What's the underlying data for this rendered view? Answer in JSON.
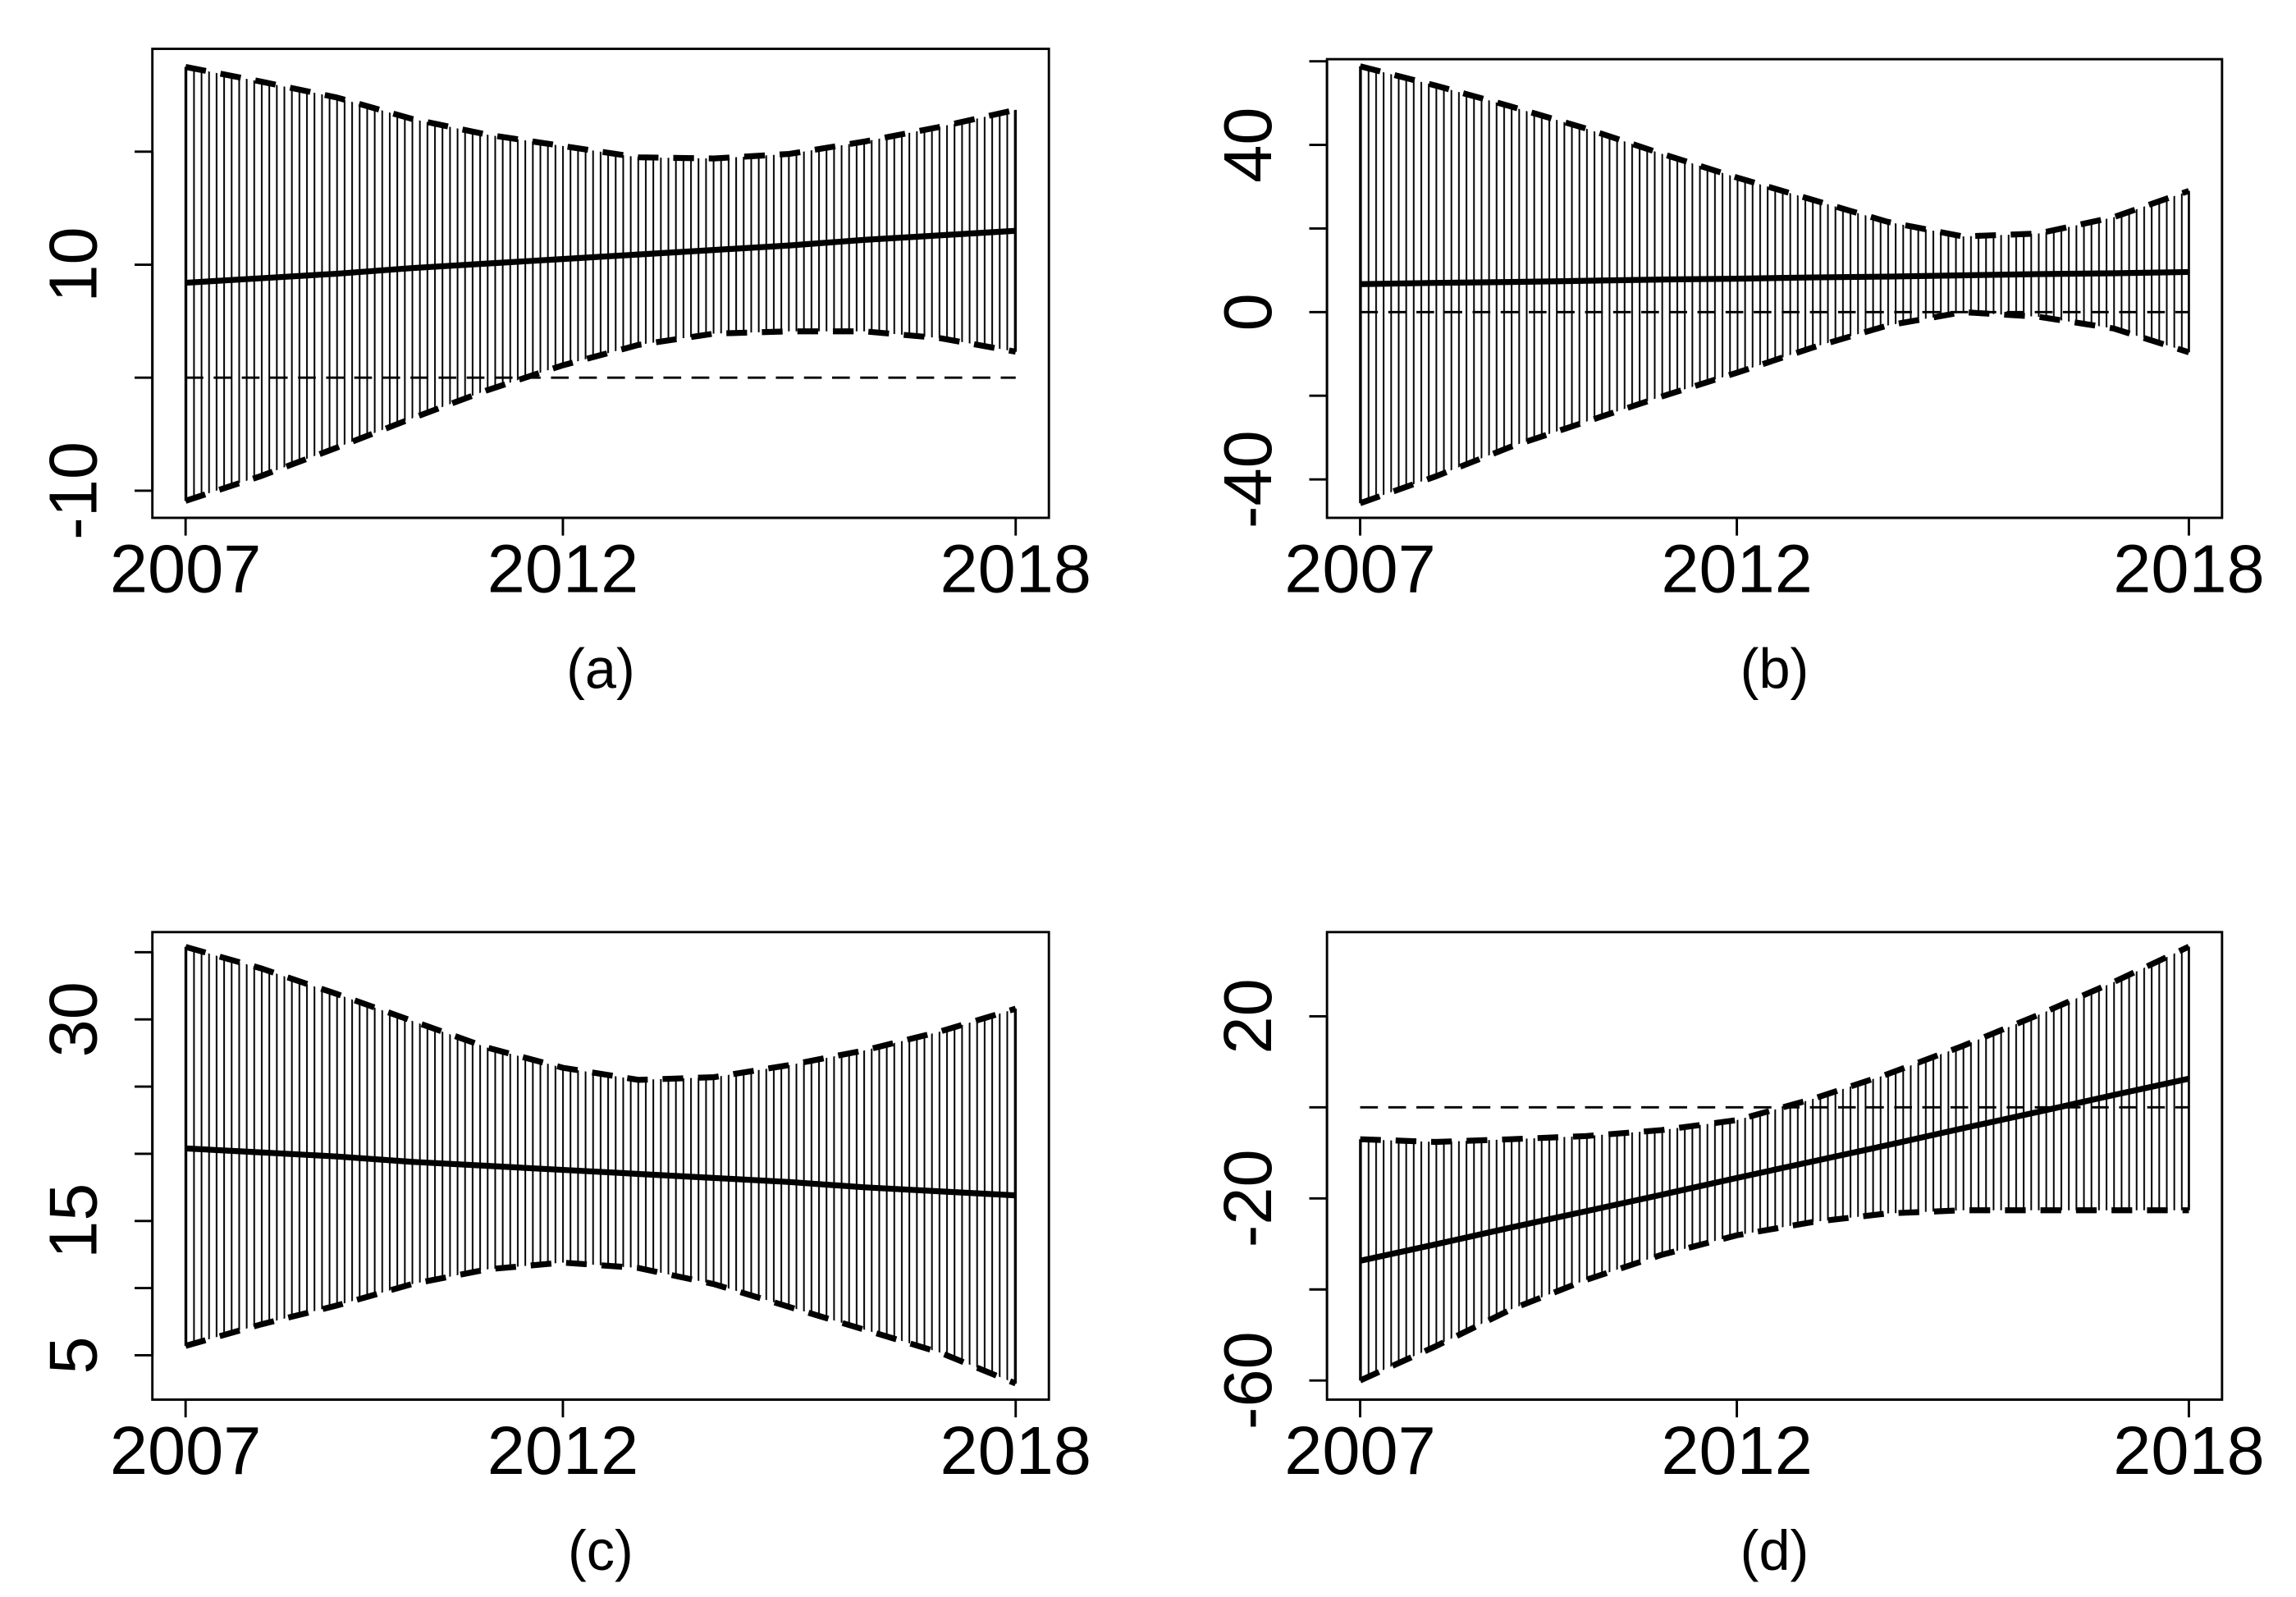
{
  "chart_data": [
    {
      "type": "line",
      "caption": "(a)",
      "x": [
        2007,
        2008,
        2009,
        2010,
        2011,
        2012,
        2013,
        2014,
        2015,
        2016,
        2017,
        2018
      ],
      "xlim": [
        2006.56,
        2018.44
      ],
      "xticks": [
        2007,
        2012,
        2018
      ],
      "ylim": [
        -12.4,
        29.1
      ],
      "yticks": [
        -10,
        {
          "value": 0,
          "label": null
        },
        10,
        {
          "value": 20,
          "label": null
        }
      ],
      "hline": 0,
      "band": [
        0,
        1
      ],
      "series": [
        {
          "color": "#000000",
          "linestyle": "dashed",
          "values": [
            -10.9,
            -8.7,
            -6.2,
            -3.6,
            -1.1,
            1.1,
            2.9,
            3.9,
            4.1,
            4.1,
            3.5,
            2.3
          ]
        },
        {
          "color": "#000000",
          "linestyle": "dashed",
          "values": [
            27.5,
            26.2,
            24.8,
            22.9,
            21.5,
            20.5,
            19.5,
            19.4,
            19.8,
            20.9,
            22.2,
            23.7
          ]
        },
        {
          "color": "#000000",
          "linestyle": "solid",
          "values": [
            8.4,
            8.8,
            9.2,
            9.7,
            10.1,
            10.5,
            10.9,
            11.3,
            11.7,
            12.2,
            12.6,
            13.0
          ]
        }
      ]
    },
    {
      "type": "line",
      "caption": "(b)",
      "x": [
        2007,
        2008,
        2009,
        2010,
        2011,
        2012,
        2013,
        2014,
        2015,
        2016,
        2017,
        2018
      ],
      "xlim": [
        2006.56,
        2018.44
      ],
      "xticks": [
        2007,
        2012,
        2018
      ],
      "ylim": [
        -49.2,
        60.5
      ],
      "yticks": [
        -40,
        {
          "value": -20,
          "label": null
        },
        0,
        {
          "value": 20,
          "label": null
        },
        40,
        {
          "value": 60,
          "label": null
        }
      ],
      "hline": 0,
      "band": [
        0,
        1
      ],
      "series": [
        {
          "color": "#000000",
          "linestyle": "dashed",
          "values": [
            -45.7,
            -39.3,
            -32.2,
            -26.2,
            -20.2,
            -14.5,
            -8.5,
            -3.2,
            0,
            -1.1,
            -3.9,
            -9.6
          ]
        },
        {
          "color": "#000000",
          "linestyle": "dashed",
          "values": [
            58.8,
            54.2,
            49.2,
            43.9,
            37.9,
            32.2,
            26.9,
            21.6,
            18.1,
            18.8,
            22.7,
            29.0
          ]
        },
        {
          "color": "#000000",
          "linestyle": "solid",
          "values": [
            6.7,
            7.0,
            7.2,
            7.5,
            7.8,
            8.0,
            8.3,
            8.5,
            8.8,
            9.1,
            9.3,
            9.6
          ]
        }
      ]
    },
    {
      "type": "line",
      "caption": "(c)",
      "x": [
        2007,
        2008,
        2009,
        2010,
        2011,
        2012,
        2013,
        2014,
        2015,
        2016,
        2017,
        2018
      ],
      "xlim": [
        2006.56,
        2018.44
      ],
      "xticks": [
        2007,
        2012,
        2018
      ],
      "ylim": [
        1.7,
        36.5
      ],
      "yticks": [
        5,
        {
          "value": 10,
          "label": null
        },
        15,
        {
          "value": 20,
          "label": null
        },
        {
          "value": 25,
          "label": null
        },
        30,
        {
          "value": 35,
          "label": null
        }
      ],
      "band": [
        0,
        1
      ],
      "series": [
        {
          "color": "#000000",
          "linestyle": "dashed",
          "values": [
            5.7,
            7.3,
            8.7,
            10.3,
            11.4,
            11.9,
            11.5,
            10.3,
            8.6,
            6.9,
            5.2,
            2.9
          ]
        },
        {
          "color": "#000000",
          "linestyle": "dashed",
          "values": [
            35.4,
            33.8,
            31.9,
            29.9,
            27.9,
            26.4,
            25.5,
            25.7,
            26.6,
            27.7,
            29.1,
            30.8
          ]
        },
        {
          "color": "#000000",
          "linestyle": "solid",
          "values": [
            20.4,
            20.1,
            19.8,
            19.4,
            19.1,
            18.8,
            18.5,
            18.2,
            17.9,
            17.5,
            17.2,
            16.9
          ]
        }
      ]
    },
    {
      "type": "line",
      "caption": "(d)",
      "x": [
        2007,
        2008,
        2009,
        2010,
        2011,
        2012,
        2013,
        2014,
        2015,
        2016,
        2017,
        2018
      ],
      "xlim": [
        2006.56,
        2018.44
      ],
      "xticks": [
        2007,
        2012,
        2018
      ],
      "ylim": [
        -64.2,
        38.5
      ],
      "yticks": [
        -60,
        {
          "value": -40,
          "label": null
        },
        -20,
        {
          "value": 0,
          "label": null
        },
        20
      ],
      "hline": 0,
      "band": [
        0,
        1
      ],
      "series": [
        {
          "color": "#000000",
          "linestyle": "dashed",
          "values": [
            -60,
            -52.5,
            -44.4,
            -37.9,
            -32.4,
            -28.1,
            -25.2,
            -23.3,
            -22.6,
            -22.6,
            -22.6,
            -22.6
          ]
        },
        {
          "color": "#000000",
          "linestyle": "dashed",
          "values": [
            -7.0,
            -7.6,
            -7.0,
            -6.3,
            -5.0,
            -2.8,
            1.8,
            7.3,
            13.5,
            20.3,
            27.5,
            35.3
          ]
        },
        {
          "color": "#000000",
          "linestyle": "solid",
          "values": [
            -33.7,
            -30.1,
            -26.4,
            -22.8,
            -19.2,
            -15.5,
            -11.9,
            -8.3,
            -4.6,
            -1.0,
            2.7,
            6.3
          ]
        }
      ]
    }
  ]
}
